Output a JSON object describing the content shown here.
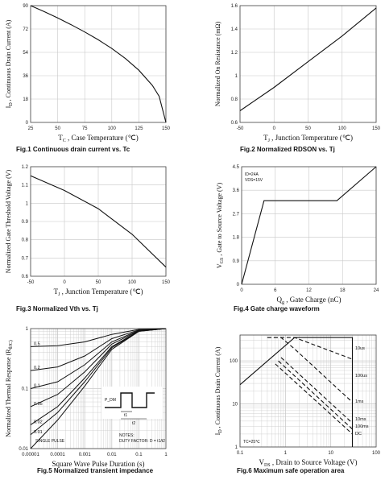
{
  "chart_data": [
    {
      "id": "fig1",
      "type": "line",
      "title": "Fig.1  Continuous drain current vs. Tc",
      "xlabel": "T_C , Case Temperature (℃)",
      "ylabel": "I_D , Continuous Drain Current (A)",
      "xticks": [
        "25",
        "50",
        "75",
        "100",
        "125",
        "150"
      ],
      "yticks": [
        "0",
        "18",
        "36",
        "54",
        "72",
        "90"
      ],
      "xlim": [
        25,
        150
      ],
      "ylim": [
        0,
        90
      ],
      "series": [
        {
          "x": [
            25,
            37.5,
            50,
            62.5,
            75,
            87.5,
            100,
            112.5,
            125,
            137.5,
            143.75,
            150
          ],
          "y": [
            90,
            85.4,
            80.5,
            75.3,
            69.7,
            63.7,
            57,
            49.3,
            40.2,
            28.5,
            20.1,
            0
          ]
        }
      ]
    },
    {
      "id": "fig2",
      "type": "line",
      "title": "Fig.2  Normalized RDSON vs. Tj",
      "xlabel": "T_J , Junction Temperature (℃)",
      "ylabel": "Normalized On Resistance (mΩ)",
      "xticks": [
        "-50",
        "0",
        "50",
        "100",
        "150"
      ],
      "yticks": [
        "0.6",
        "0.8",
        "1",
        "1.2",
        "1.4",
        "1.6"
      ],
      "xlim": [
        -50,
        150
      ],
      "ylim": [
        0.6,
        1.6
      ],
      "series": [
        {
          "x": [
            -50,
            0,
            50,
            100,
            150
          ],
          "y": [
            0.7,
            0.9,
            1.12,
            1.34,
            1.58
          ]
        }
      ]
    },
    {
      "id": "fig3",
      "type": "line",
      "title": "Fig.3 Normalized Vth vs. Tj",
      "xlabel": "T_J , Junction Temperature (℃)",
      "ylabel": "Normalized Gate Threshold Voltage (V)",
      "xticks": [
        "-50",
        "0",
        "50",
        "100",
        "150"
      ],
      "yticks": [
        "0.6",
        "0.7",
        "0.8",
        "0.9",
        "1",
        "1.1",
        "1.2"
      ],
      "xlim": [
        -50,
        150
      ],
      "ylim": [
        0.6,
        1.2
      ],
      "series": [
        {
          "x": [
            -50,
            0,
            50,
            100,
            150
          ],
          "y": [
            1.15,
            1.07,
            0.97,
            0.83,
            0.65
          ]
        }
      ]
    },
    {
      "id": "fig4",
      "type": "line",
      "title": "Fig.4  Gate charge waveform",
      "xlabel": "Q_g , Gate Charge (nC)",
      "ylabel": "V_GS , Gate to Source Voltage (V)",
      "xticks": [
        "0",
        "6",
        "12",
        "18",
        "24"
      ],
      "yticks": [
        "0",
        "0.9",
        "1.8",
        "2.7",
        "3.6",
        "4.5"
      ],
      "xlim": [
        0,
        24
      ],
      "ylim": [
        0,
        4.5
      ],
      "annotations": [
        "ID=24A",
        "VDS=15V"
      ],
      "series": [
        {
          "x": [
            0,
            4,
            17,
            24
          ],
          "y": [
            0,
            3.2,
            3.2,
            4.5
          ]
        }
      ]
    },
    {
      "id": "fig5",
      "type": "line",
      "title": "Fig.5 Normalized transient impedance",
      "xlabel": "Square Wave Pulse Duration (s)",
      "ylabel": "Normalized Thermal Response (R_θJC)",
      "xticks": [
        "0.00001",
        "0.0001",
        "0.001",
        "0.01",
        "0.1",
        "1"
      ],
      "yticks": [
        "0.01",
        "0.1",
        "1"
      ],
      "xlim": [
        1e-05,
        1
      ],
      "ylim": [
        0.01,
        1
      ],
      "xscale": "log",
      "yscale": "log",
      "annotations": [
        "SINGLE PULSE",
        "NOTES:",
        "DUTY FACTOR: D = t1/t2",
        "P_DM",
        "t1",
        "t2"
      ],
      "series": [
        {
          "name": "0.5",
          "x": [
            1e-05,
            0.0001,
            0.001,
            0.01,
            0.1,
            1
          ],
          "y": [
            0.5,
            0.52,
            0.6,
            0.8,
            0.97,
            1
          ]
        },
        {
          "name": "0.2",
          "x": [
            1e-05,
            0.0001,
            0.001,
            0.01,
            0.1,
            1
          ],
          "y": [
            0.2,
            0.23,
            0.35,
            0.68,
            0.95,
            1
          ]
        },
        {
          "name": "0.1",
          "x": [
            1e-05,
            0.0001,
            0.001,
            0.01,
            0.1,
            1
          ],
          "y": [
            0.1,
            0.13,
            0.25,
            0.6,
            0.93,
            1
          ]
        },
        {
          "name": "0.05",
          "x": [
            1e-05,
            0.0001,
            0.001,
            0.01,
            0.1,
            1
          ],
          "y": [
            0.05,
            0.08,
            0.19,
            0.55,
            0.92,
            1
          ]
        },
        {
          "name": "0.02",
          "x": [
            1e-05,
            0.0001,
            0.001,
            0.01,
            0.1,
            1
          ],
          "y": [
            0.025,
            0.05,
            0.15,
            0.5,
            0.91,
            1
          ]
        },
        {
          "name": "0.01",
          "x": [
            1e-05,
            0.0001,
            0.001,
            0.01,
            0.1,
            1
          ],
          "y": [
            0.017,
            0.04,
            0.13,
            0.48,
            0.9,
            1
          ]
        },
        {
          "name": "",
          "x": [
            1e-05,
            0.0001,
            0.001,
            0.01,
            0.1,
            1
          ],
          "y": [
            0.01,
            0.03,
            0.11,
            0.45,
            0.9,
            1
          ]
        }
      ]
    },
    {
      "id": "fig6",
      "type": "line",
      "title": "Fig.6  Maximum safe operation area",
      "xlabel": "V_DS , Drain to Source Voltage (V)",
      "ylabel": "I_D , Continuous Drain Current (A)",
      "xticks": [
        "0.1",
        "1",
        "10",
        "100"
      ],
      "yticks": [
        "1",
        "10",
        "100"
      ],
      "xlim": [
        0.1,
        100
      ],
      "ylim": [
        1,
        400
      ],
      "xscale": "log",
      "yscale": "log",
      "annotations": [
        "TC=25℃"
      ],
      "series": [
        {
          "name": "10us",
          "x": [
            0.1,
            1.6,
            30,
            30
          ],
          "y": [
            28,
            350,
            350,
            1
          ]
        },
        {
          "name": "100us",
          "x": [
            0.4,
            1.6,
            30
          ],
          "y": [
            350,
            350,
            110
          ]
        },
        {
          "name": "1ms",
          "x": [
            0.4,
            0.8,
            1.6,
            30
          ],
          "y": [
            350,
            350,
            190,
            11
          ]
        },
        {
          "name": "10ms",
          "x": [
            0.8,
            30
          ],
          "y": [
            120,
            3.6
          ]
        },
        {
          "name": "100ms",
          "x": [
            0.7,
            30
          ],
          "y": [
            100,
            2.6
          ]
        },
        {
          "name": "DC",
          "x": [
            0.6,
            30
          ],
          "y": [
            85,
            2.0
          ]
        }
      ]
    }
  ]
}
